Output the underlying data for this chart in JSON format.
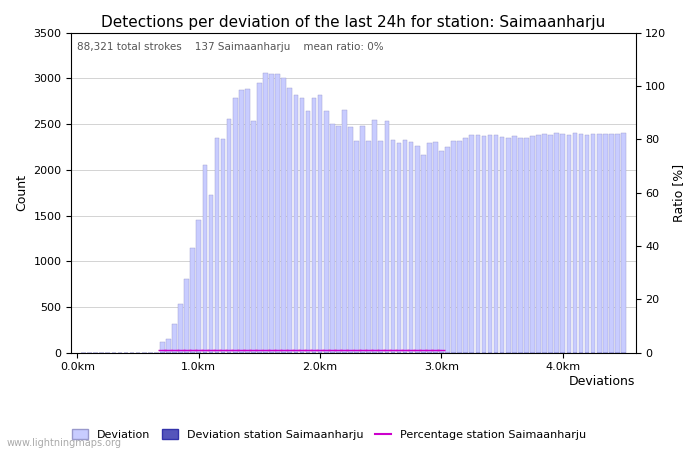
{
  "title": "Detections per deviation of the last 24h for station: Saimaanharju",
  "subtitle": "88,321 total strokes    137 Saimaanharju    mean ratio: 0%",
  "xlabel": "Deviations",
  "ylabel_left": "Count",
  "ylabel_right": "Ratio [%]",
  "watermark": "www.lightningmaps.org",
  "x_tick_labels": [
    "0.0km",
    "1.0km",
    "2.0km",
    "3.0km",
    "4.0km"
  ],
  "x_tick_positions": [
    0.0,
    1.0,
    2.0,
    3.0,
    4.0
  ],
  "ylim_left": [
    0,
    3500
  ],
  "ylim_right": [
    0,
    120
  ],
  "yticks_left": [
    0,
    500,
    1000,
    1500,
    2000,
    2500,
    3000,
    3500
  ],
  "yticks_right": [
    0,
    20,
    40,
    60,
    80,
    100,
    120
  ],
  "deviation_color": "#c8ccff",
  "deviation_edge_color": "#9999cc",
  "station_bar_color": "#5555bb",
  "station_bar_edge_color": "#3333aa",
  "percentage_color": "#cc00cc",
  "background_color": "#ffffff",
  "grid_color": "#cccccc",
  "title_fontsize": 11,
  "label_fontsize": 9,
  "tick_fontsize": 8,
  "legend_fontsize": 8,
  "deviation_values_x": [
    0.05,
    0.1,
    0.15,
    0.2,
    0.25,
    0.3,
    0.35,
    0.4,
    0.45,
    0.5,
    0.55,
    0.6,
    0.65,
    0.7,
    0.75,
    0.8,
    0.85,
    0.9,
    0.95,
    1.0,
    1.05,
    1.1,
    1.15,
    1.2,
    1.25,
    1.3,
    1.35,
    1.4,
    1.45,
    1.5,
    1.55,
    1.6,
    1.65,
    1.7,
    1.75,
    1.8,
    1.85,
    1.9,
    1.95,
    2.0,
    2.05,
    2.1,
    2.15,
    2.2,
    2.25,
    2.3,
    2.35,
    2.4,
    2.45,
    2.5,
    2.55,
    2.6,
    2.65,
    2.7,
    2.75,
    2.8,
    2.85,
    2.9,
    2.95,
    3.0,
    3.05,
    3.1,
    3.15,
    3.2,
    3.25,
    3.3,
    3.35,
    3.4,
    3.45,
    3.5,
    3.55,
    3.6,
    3.65,
    3.7,
    3.75,
    3.8,
    3.85,
    3.9,
    3.95,
    4.0,
    4.05,
    4.1,
    4.15,
    4.2,
    4.25,
    4.3,
    4.35,
    4.4,
    4.45,
    4.5
  ],
  "deviation_values_y": [
    0,
    0,
    0,
    0,
    0,
    0,
    0,
    0,
    0,
    0,
    0,
    0,
    0,
    120,
    150,
    310,
    530,
    810,
    1150,
    1450,
    2050,
    1720,
    2350,
    2340,
    2550,
    2780,
    2870,
    2880,
    2530,
    2950,
    3060,
    3050,
    3050,
    3000,
    2890,
    2820,
    2790,
    2640,
    2790,
    2820,
    2640,
    2500,
    2480,
    2650,
    2470,
    2320,
    2480,
    2310,
    2540,
    2310,
    2530,
    2330,
    2290,
    2330,
    2300,
    2260,
    2160,
    2290,
    2300,
    2200,
    2250,
    2310,
    2320,
    2350,
    2380,
    2380,
    2370,
    2380,
    2380,
    2360,
    2350,
    2370,
    2350,
    2350,
    2370,
    2380,
    2390,
    2380,
    2400,
    2390,
    2380,
    2400,
    2390,
    2380,
    2390,
    2390,
    2390,
    2390,
    2390,
    2400
  ],
  "station_values_y": [
    0,
    0,
    0,
    0,
    0,
    0,
    0,
    0,
    0,
    0,
    0,
    0,
    0,
    0,
    0,
    0,
    0,
    0,
    0,
    0,
    0,
    0,
    0,
    0,
    0,
    0,
    0,
    0,
    0,
    0,
    0,
    0,
    0,
    0,
    0,
    0,
    0,
    0,
    0,
    0,
    0,
    0,
    0,
    0,
    0,
    0,
    0,
    0,
    0,
    0,
    0,
    0,
    0,
    0,
    0,
    0,
    0,
    0,
    0,
    0,
    0,
    0,
    0,
    0,
    0,
    0,
    0,
    0,
    0,
    0,
    0,
    0,
    0,
    0,
    0,
    0,
    0,
    0,
    0,
    0,
    0,
    0,
    0,
    0,
    0,
    0,
    0,
    0,
    0,
    0
  ],
  "percentage_x": [
    0.7,
    0.75,
    0.8,
    0.85,
    0.9,
    0.95,
    1.0,
    1.05,
    1.1,
    1.15,
    1.2,
    1.25,
    1.3,
    1.35,
    1.4,
    1.45,
    1.5,
    1.55,
    1.6,
    1.65,
    1.7,
    1.75,
    1.8,
    1.85,
    1.9,
    1.95,
    2.0,
    2.05,
    2.1,
    2.15,
    2.2,
    2.25,
    2.3,
    2.35,
    2.4,
    2.45,
    2.5,
    2.55,
    2.6,
    2.65,
    2.7,
    2.75,
    2.8,
    2.85,
    2.9,
    2.95,
    3.0
  ],
  "percentage_y": [
    1,
    1,
    1,
    1,
    1,
    1,
    1,
    1,
    1,
    1,
    1,
    1,
    1,
    1,
    1,
    1,
    1,
    1,
    1,
    1,
    1,
    1,
    1,
    1,
    1,
    1,
    1,
    1,
    1,
    1,
    1,
    1,
    1,
    1,
    1,
    1,
    1,
    1,
    1,
    1,
    1,
    1,
    1,
    1,
    1,
    1,
    1
  ]
}
